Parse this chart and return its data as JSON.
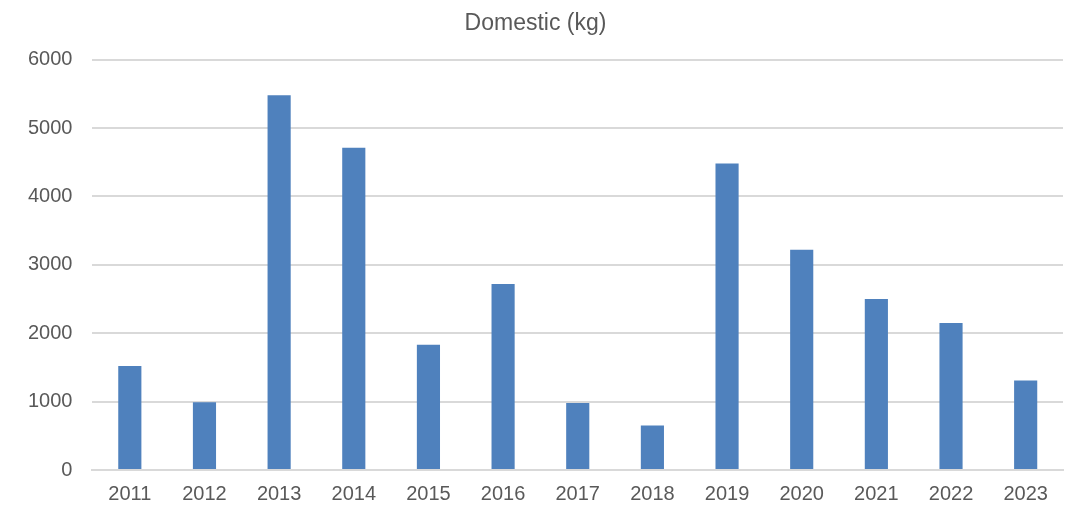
{
  "chart_data": {
    "type": "bar",
    "title": "Domestic (kg)",
    "categories": [
      "2011",
      "2012",
      "2013",
      "2014",
      "2015",
      "2016",
      "2017",
      "2018",
      "2019",
      "2020",
      "2021",
      "2022",
      "2023"
    ],
    "values": [
      1520,
      990,
      5480,
      4710,
      1830,
      2720,
      980,
      650,
      4480,
      3220,
      2500,
      2150,
      1310
    ],
    "color": "#4f81bd",
    "ylim": [
      0,
      6000
    ],
    "yticks": [
      0,
      1000,
      2000,
      3000,
      4000,
      5000,
      6000
    ],
    "grid": "y",
    "legend": false
  }
}
